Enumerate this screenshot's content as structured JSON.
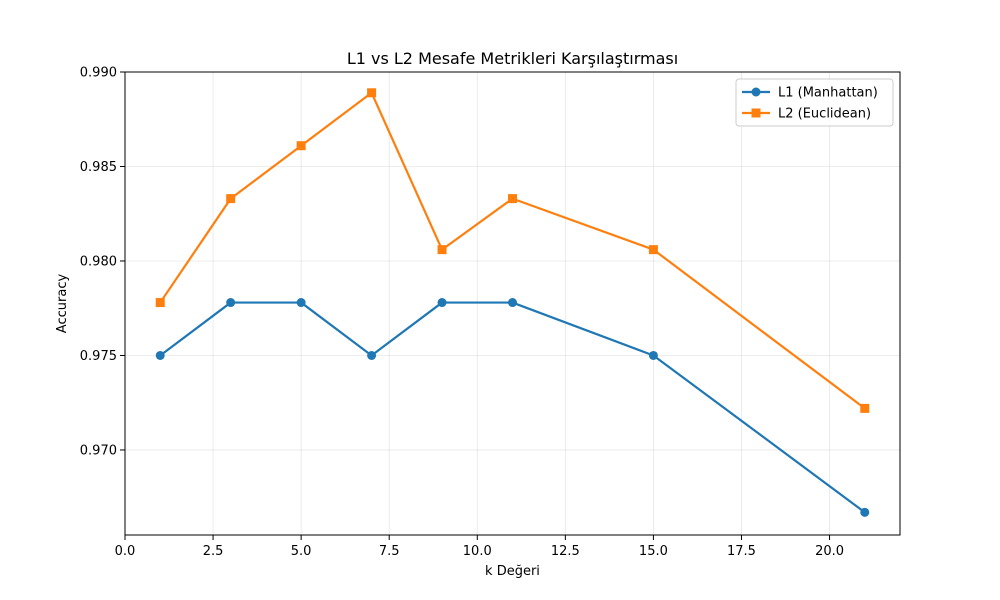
{
  "chart_data": {
    "type": "line",
    "title": "L1 vs L2 Mesafe Metrikleri Karşılaştırması",
    "xlabel": "k Değeri",
    "ylabel": "Accuracy",
    "xlim": [
      0.0,
      22.0
    ],
    "ylim": [
      0.9655,
      0.99
    ],
    "xticks": [
      0.0,
      2.5,
      5.0,
      7.5,
      10.0,
      12.5,
      15.0,
      17.5,
      20.0
    ],
    "xtick_labels": [
      "0.0",
      "2.5",
      "5.0",
      "7.5",
      "10.0",
      "12.5",
      "15.0",
      "17.5",
      "20.0"
    ],
    "yticks": [
      0.97,
      0.975,
      0.98,
      0.985,
      0.99
    ],
    "ytick_labels": [
      "0.970",
      "0.975",
      "0.980",
      "0.985",
      "0.990"
    ],
    "grid": true,
    "legend_position": "top-right",
    "x": [
      1,
      3,
      5,
      7,
      9,
      11,
      15,
      21
    ],
    "series": [
      {
        "name": "L1 (Manhattan)",
        "color": "#1f77b4",
        "marker": "circle",
        "values": [
          0.975,
          0.9778,
          0.9778,
          0.975,
          0.9778,
          0.9778,
          0.975,
          0.9667
        ]
      },
      {
        "name": "L2 (Euclidean)",
        "color": "#ff7f0e",
        "marker": "square",
        "values": [
          0.9778,
          0.9833,
          0.9861,
          0.9889,
          0.9806,
          0.9833,
          0.9806,
          0.9722
        ]
      }
    ]
  }
}
